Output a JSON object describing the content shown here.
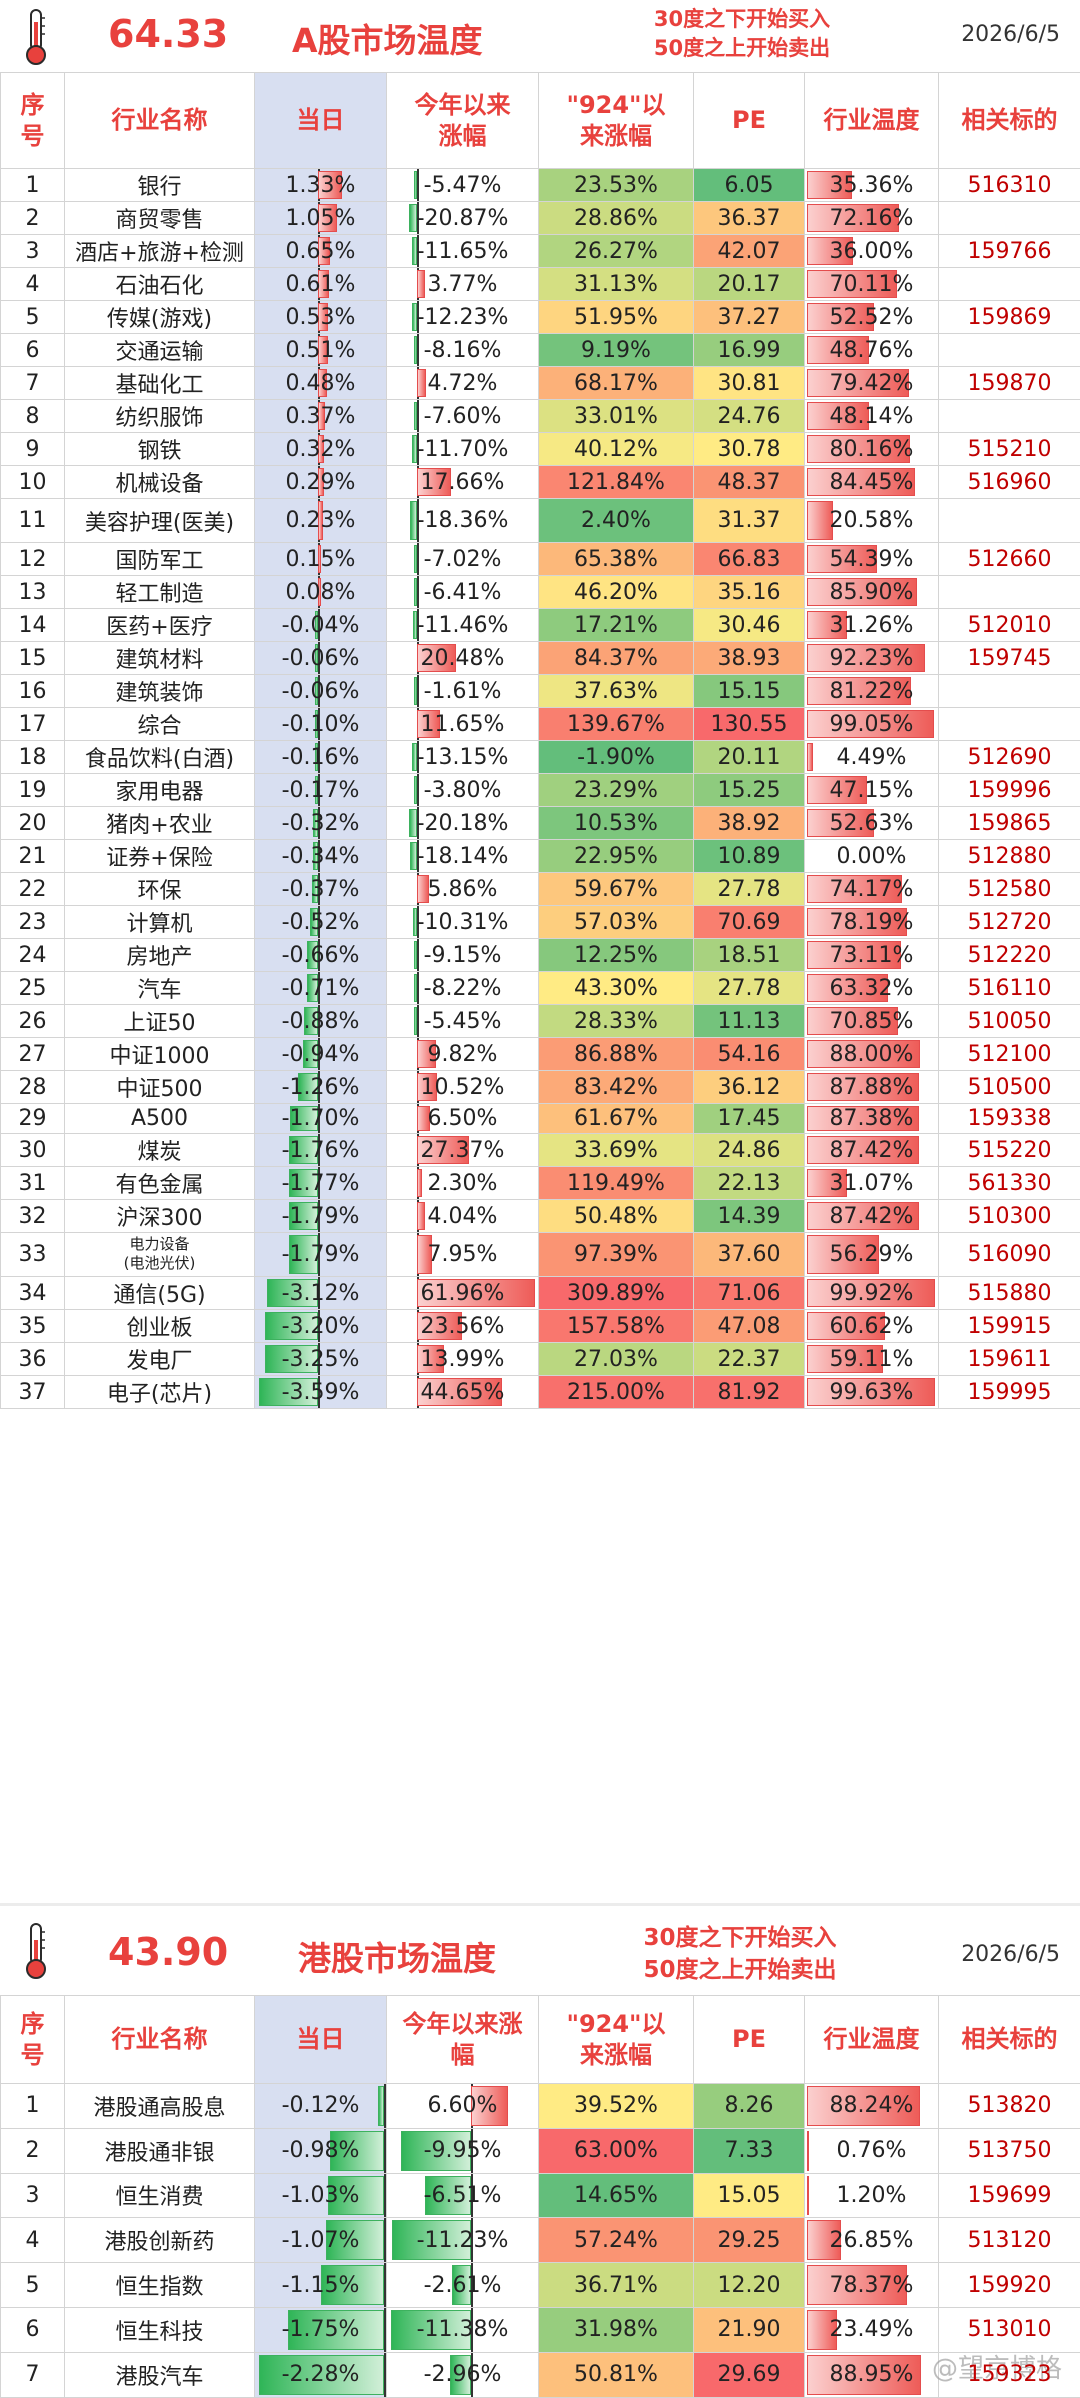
{
  "a_share": {
    "temperature": "64.33",
    "title": "A股市场温度",
    "rule_line1": "30度之下开始买入",
    "rule_line2": "50度之上开始卖出",
    "date": "2026/6/5",
    "headers": {
      "index": "序号",
      "name": "行业名称",
      "day": "当日",
      "ytd": "今年以来涨幅",
      "since924": "\"924\"以来涨幅",
      "pe": "PE",
      "temp": "行业温度",
      "code": "相关标的"
    },
    "rows": [
      {
        "idx": "1",
        "name": "银行",
        "day": "1.33%",
        "ytd": "-5.47%",
        "s924": "23.53%",
        "pe": "6.05",
        "temp": "35.36%",
        "code": "516310"
      },
      {
        "idx": "2",
        "name": "商贸零售",
        "day": "1.05%",
        "ytd": "-20.87%",
        "s924": "28.86%",
        "pe": "36.37",
        "temp": "72.16%",
        "code": ""
      },
      {
        "idx": "3",
        "name": "酒店+旅游+检测",
        "day": "0.65%",
        "ytd": "-11.65%",
        "s924": "26.27%",
        "pe": "42.07",
        "temp": "36.00%",
        "code": "159766"
      },
      {
        "idx": "4",
        "name": "石油石化",
        "day": "0.61%",
        "ytd": "3.77%",
        "s924": "31.13%",
        "pe": "20.17",
        "temp": "70.11%",
        "code": ""
      },
      {
        "idx": "5",
        "name": "传媒(游戏)",
        "day": "0.53%",
        "ytd": "-12.23%",
        "s924": "51.95%",
        "pe": "37.27",
        "temp": "52.52%",
        "code": "159869"
      },
      {
        "idx": "6",
        "name": "交通运输",
        "day": "0.51%",
        "ytd": "-8.16%",
        "s924": "9.19%",
        "pe": "16.99",
        "temp": "48.76%",
        "code": ""
      },
      {
        "idx": "7",
        "name": "基础化工",
        "day": "0.48%",
        "ytd": "4.72%",
        "s924": "68.17%",
        "pe": "30.81",
        "temp": "79.42%",
        "code": "159870"
      },
      {
        "idx": "8",
        "name": "纺织服饰",
        "day": "0.37%",
        "ytd": "-7.60%",
        "s924": "33.01%",
        "pe": "24.76",
        "temp": "48.14%",
        "code": ""
      },
      {
        "idx": "9",
        "name": "钢铁",
        "day": "0.32%",
        "ytd": "-11.70%",
        "s924": "40.12%",
        "pe": "30.78",
        "temp": "80.16%",
        "code": "515210"
      },
      {
        "idx": "10",
        "name": "机械设备",
        "day": "0.29%",
        "ytd": "17.66%",
        "s924": "121.84%",
        "pe": "48.37",
        "temp": "84.45%",
        "code": "516960"
      },
      {
        "idx": "11",
        "name": "美容护理(医美)",
        "day": "0.23%",
        "ytd": "-18.36%",
        "s924": "2.40%",
        "pe": "31.37",
        "temp": "20.58%",
        "code": ""
      },
      {
        "idx": "12",
        "name": "国防军工",
        "day": "0.15%",
        "ytd": "-7.02%",
        "s924": "65.38%",
        "pe": "66.83",
        "temp": "54.39%",
        "code": "512660"
      },
      {
        "idx": "13",
        "name": "轻工制造",
        "day": "0.08%",
        "ytd": "-6.41%",
        "s924": "46.20%",
        "pe": "35.16",
        "temp": "85.90%",
        "code": ""
      },
      {
        "idx": "14",
        "name": "医药+医疗",
        "day": "-0.04%",
        "ytd": "-11.46%",
        "s924": "17.21%",
        "pe": "30.46",
        "temp": "31.26%",
        "code": "512010"
      },
      {
        "idx": "15",
        "name": "建筑材料",
        "day": "-0.06%",
        "ytd": "20.48%",
        "s924": "84.37%",
        "pe": "38.93",
        "temp": "92.23%",
        "code": "159745"
      },
      {
        "idx": "16",
        "name": "建筑装饰",
        "day": "-0.06%",
        "ytd": "-1.61%",
        "s924": "37.63%",
        "pe": "15.15",
        "temp": "81.22%",
        "code": ""
      },
      {
        "idx": "17",
        "name": "综合",
        "day": "-0.10%",
        "ytd": "11.65%",
        "s924": "139.67%",
        "pe": "130.55",
        "temp": "99.05%",
        "code": ""
      },
      {
        "idx": "18",
        "name": "食品饮料(白酒)",
        "day": "-0.16%",
        "ytd": "-13.15%",
        "s924": "-1.90%",
        "pe": "20.11",
        "temp": "4.49%",
        "code": "512690"
      },
      {
        "idx": "19",
        "name": "家用电器",
        "day": "-0.17%",
        "ytd": "-3.80%",
        "s924": "23.29%",
        "pe": "15.25",
        "temp": "47.15%",
        "code": "159996"
      },
      {
        "idx": "20",
        "name": "猪肉+农业",
        "day": "-0.32%",
        "ytd": "-20.18%",
        "s924": "10.53%",
        "pe": "38.92",
        "temp": "52.63%",
        "code": "159865"
      },
      {
        "idx": "21",
        "name": "证券+保险",
        "day": "-0.34%",
        "ytd": "-18.14%",
        "s924": "22.95%",
        "pe": "10.89",
        "temp": "0.00%",
        "code": "512880"
      },
      {
        "idx": "22",
        "name": "环保",
        "day": "-0.37%",
        "ytd": "5.86%",
        "s924": "59.67%",
        "pe": "27.78",
        "temp": "74.17%",
        "code": "512580"
      },
      {
        "idx": "23",
        "name": "计算机",
        "day": "-0.52%",
        "ytd": "-10.31%",
        "s924": "57.03%",
        "pe": "70.69",
        "temp": "78.19%",
        "code": "512720"
      },
      {
        "idx": "24",
        "name": "房地产",
        "day": "-0.66%",
        "ytd": "-9.15%",
        "s924": "12.25%",
        "pe": "18.51",
        "temp": "73.11%",
        "code": "512220"
      },
      {
        "idx": "25",
        "name": "汽车",
        "day": "-0.71%",
        "ytd": "-8.22%",
        "s924": "43.30%",
        "pe": "27.78",
        "temp": "63.32%",
        "code": "516110"
      },
      {
        "idx": "26",
        "name": "上证50",
        "day": "-0.88%",
        "ytd": "-5.45%",
        "s924": "28.33%",
        "pe": "11.13",
        "temp": "70.85%",
        "code": "510050"
      },
      {
        "idx": "27",
        "name": "中证1000",
        "day": "-0.94%",
        "ytd": "9.82%",
        "s924": "86.88%",
        "pe": "54.16",
        "temp": "88.00%",
        "code": "512100"
      },
      {
        "idx": "28",
        "name": "中证500",
        "day": "-1.26%",
        "ytd": "10.52%",
        "s924": "83.42%",
        "pe": "36.12",
        "temp": "87.88%",
        "code": "510500"
      },
      {
        "idx": "29",
        "name": "A500",
        "day": "-1.70%",
        "ytd": "6.50%",
        "s924": "61.67%",
        "pe": "17.45",
        "temp": "87.38%",
        "code": "159338"
      },
      {
        "idx": "30",
        "name": "煤炭",
        "day": "-1.76%",
        "ytd": "27.37%",
        "s924": "33.69%",
        "pe": "24.86",
        "temp": "87.42%",
        "code": "515220"
      },
      {
        "idx": "31",
        "name": "有色金属",
        "day": "-1.77%",
        "ytd": "2.30%",
        "s924": "119.49%",
        "pe": "22.13",
        "temp": "31.07%",
        "code": "561330"
      },
      {
        "idx": "32",
        "name": "沪深300",
        "day": "-1.79%",
        "ytd": "4.04%",
        "s924": "50.48%",
        "pe": "14.39",
        "temp": "87.42%",
        "code": "510300"
      },
      {
        "idx": "33",
        "name": "电力设备\n(电池光伏)",
        "day": "-1.79%",
        "ytd": "7.95%",
        "s924": "97.39%",
        "pe": "37.60",
        "temp": "56.29%",
        "code": "516090"
      },
      {
        "idx": "34",
        "name": "通信(5G)",
        "day": "-3.12%",
        "ytd": "61.96%",
        "s924": "309.89%",
        "pe": "71.06",
        "temp": "99.92%",
        "code": "515880"
      },
      {
        "idx": "35",
        "name": "创业板",
        "day": "-3.20%",
        "ytd": "23.56%",
        "s924": "157.58%",
        "pe": "47.08",
        "temp": "60.62%",
        "code": "159915"
      },
      {
        "idx": "36",
        "name": "发电厂",
        "day": "-3.25%",
        "ytd": "13.99%",
        "s924": "27.03%",
        "pe": "22.37",
        "temp": "59.11%",
        "code": "159611"
      },
      {
        "idx": "37",
        "name": "电子(芯片)",
        "day": "-3.59%",
        "ytd": "44.65%",
        "s924": "215.00%",
        "pe": "81.92",
        "temp": "99.63%",
        "code": "159995"
      }
    ]
  },
  "hk_share": {
    "temperature": "43.90",
    "title": "港股市场温度",
    "rule_line1": "30度之下开始买入",
    "rule_line2": "50度之上开始卖出",
    "date": "2026/6/5",
    "headers": {
      "index": "序号",
      "name": "行业名称",
      "day": "当日",
      "ytd": "今年以来涨幅",
      "since924": "\"924\"以来涨幅",
      "pe": "PE",
      "temp": "行业温度",
      "code": "相关标的"
    },
    "rows": [
      {
        "idx": "1",
        "name": "港股通高股息",
        "day": "-0.12%",
        "ytd": "6.60%",
        "s924": "39.52%",
        "pe": "8.26",
        "temp": "88.24%",
        "code": "513820"
      },
      {
        "idx": "2",
        "name": "港股通非银",
        "day": "-0.98%",
        "ytd": "-9.95%",
        "s924": "63.00%",
        "pe": "7.33",
        "temp": "0.76%",
        "code": "513750"
      },
      {
        "idx": "3",
        "name": "恒生消费",
        "day": "-1.03%",
        "ytd": "-6.51%",
        "s924": "14.65%",
        "pe": "15.05",
        "temp": "1.20%",
        "code": "159699"
      },
      {
        "idx": "4",
        "name": "港股创新药",
        "day": "-1.07%",
        "ytd": "-11.23%",
        "s924": "57.24%",
        "pe": "29.25",
        "temp": "26.85%",
        "code": "513120"
      },
      {
        "idx": "5",
        "name": "恒生指数",
        "day": "-1.15%",
        "ytd": "-2.61%",
        "s924": "36.71%",
        "pe": "12.20",
        "temp": "78.37%",
        "code": "159920"
      },
      {
        "idx": "6",
        "name": "恒生科技",
        "day": "-1.75%",
        "ytd": "-11.38%",
        "s924": "31.98%",
        "pe": "21.90",
        "temp": "23.49%",
        "code": "513010"
      },
      {
        "idx": "7",
        "name": "港股汽车",
        "day": "-2.28%",
        "ytd": "-2.96%",
        "s924": "50.81%",
        "pe": "29.69",
        "temp": "88.95%",
        "code": "159323"
      }
    ]
  },
  "watermark": "@望京博格",
  "colors": {
    "accent_red": "#e8413d",
    "code_red": "#c00000",
    "day_column_bg": "#d8dff1",
    "bar_positive": "#ee5c58",
    "bar_negative": "#2fb557"
  },
  "icons": [
    "thermometer-icon"
  ]
}
